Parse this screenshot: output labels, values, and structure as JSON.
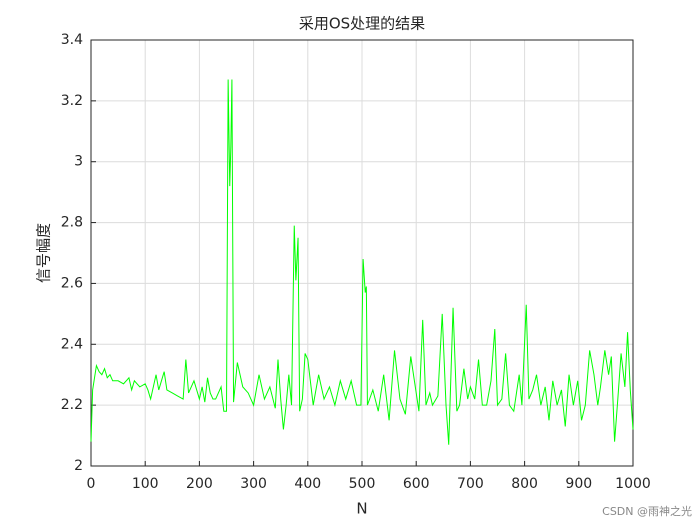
{
  "chart_data": {
    "type": "line",
    "title": "采用OS处理的结果",
    "xlabel": "N",
    "ylabel": "信号幅度",
    "annotation": "CSDN @雨神之光",
    "x": [
      0,
      3,
      10,
      15,
      20,
      25,
      30,
      35,
      40,
      50,
      60,
      70,
      75,
      80,
      90,
      100,
      105,
      110,
      115,
      120,
      125,
      130,
      135,
      140,
      150,
      160,
      170,
      175,
      180,
      190,
      200,
      205,
      210,
      215,
      220,
      225,
      230,
      240,
      245,
      250,
      253,
      256,
      258,
      260,
      263,
      270,
      280,
      290,
      300,
      310,
      320,
      330,
      340,
      345,
      350,
      355,
      360,
      365,
      370,
      375,
      378,
      382,
      385,
      390,
      395,
      400,
      410,
      420,
      430,
      440,
      450,
      460,
      470,
      480,
      490,
      498,
      502,
      506,
      508,
      510,
      520,
      530,
      540,
      550,
      560,
      570,
      580,
      590,
      600,
      605,
      612,
      618,
      625,
      630,
      640,
      648,
      655,
      660,
      668,
      675,
      680,
      688,
      695,
      700,
      708,
      715,
      722,
      730,
      738,
      745,
      750,
      758,
      765,
      772,
      780,
      790,
      795,
      803,
      808,
      815,
      822,
      830,
      838,
      845,
      852,
      860,
      868,
      875,
      882,
      890,
      898,
      905,
      912,
      920,
      928,
      935,
      940,
      948,
      955,
      960,
      966,
      972,
      978,
      985,
      990,
      995,
      1000
    ],
    "series": [
      {
        "name": "OS",
        "color": "#00ff00",
        "values": [
          2.08,
          2.25,
          2.33,
          2.31,
          2.3,
          2.32,
          2.29,
          2.3,
          2.28,
          2.28,
          2.27,
          2.29,
          2.25,
          2.28,
          2.26,
          2.27,
          2.25,
          2.22,
          2.26,
          2.3,
          2.25,
          2.28,
          2.31,
          2.25,
          2.24,
          2.23,
          2.22,
          2.35,
          2.24,
          2.28,
          2.22,
          2.26,
          2.21,
          2.29,
          2.24,
          2.22,
          2.22,
          2.26,
          2.18,
          2.18,
          3.27,
          2.92,
          3.05,
          3.27,
          2.21,
          2.34,
          2.26,
          2.24,
          2.2,
          2.3,
          2.22,
          2.26,
          2.19,
          2.35,
          2.22,
          2.12,
          2.2,
          2.3,
          2.2,
          2.79,
          2.61,
          2.75,
          2.18,
          2.22,
          2.37,
          2.35,
          2.2,
          2.3,
          2.22,
          2.26,
          2.2,
          2.28,
          2.22,
          2.28,
          2.2,
          2.2,
          2.68,
          2.57,
          2.59,
          2.2,
          2.25,
          2.18,
          2.3,
          2.15,
          2.38,
          2.22,
          2.17,
          2.36,
          2.24,
          2.18,
          2.48,
          2.2,
          2.24,
          2.2,
          2.23,
          2.5,
          2.2,
          2.07,
          2.52,
          2.18,
          2.2,
          2.32,
          2.22,
          2.26,
          2.22,
          2.35,
          2.2,
          2.2,
          2.28,
          2.45,
          2.2,
          2.22,
          2.37,
          2.2,
          2.18,
          2.3,
          2.2,
          2.53,
          2.22,
          2.25,
          2.3,
          2.2,
          2.26,
          2.15,
          2.28,
          2.2,
          2.25,
          2.13,
          2.3,
          2.2,
          2.28,
          2.15,
          2.2,
          2.38,
          2.3,
          2.2,
          2.26,
          2.38,
          2.3,
          2.36,
          2.08,
          2.22,
          2.37,
          2.26,
          2.44,
          2.25,
          2.12
        ]
      }
    ],
    "xlim": [
      0,
      1000
    ],
    "xticks": [
      0,
      100,
      200,
      300,
      400,
      500,
      600,
      700,
      800,
      900,
      1000
    ],
    "ylim": [
      2,
      3.4
    ],
    "yticks": [
      2,
      2.2,
      2.4,
      2.6,
      2.8,
      3,
      3.2,
      3.4
    ],
    "grid": true
  }
}
